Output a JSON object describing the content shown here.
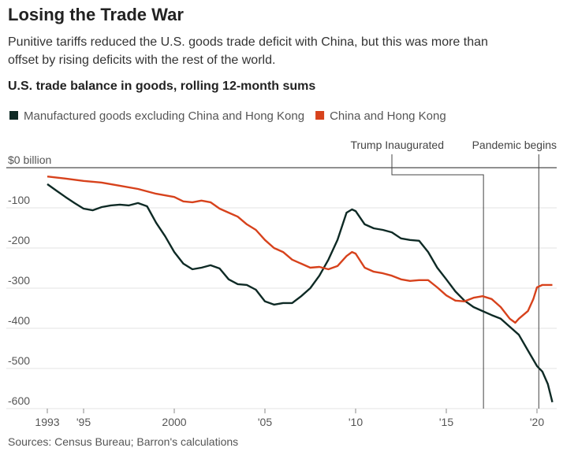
{
  "chart_data": {
    "type": "line",
    "title": "Losing the Trade War",
    "subtitle": [
      "Punitive tariffs reduced the U.S. goods trade deficit with China, but this was more than",
      "offset by rising deficits with the rest of the world."
    ],
    "heading": "U.S. trade balance in goods, rolling 12-month sums",
    "source": "Sources: Census Bureau; Barron's calculations",
    "xlim": [
      1993,
      2021
    ],
    "ylim": [
      -600,
      0
    ],
    "xticks": [
      1993,
      {
        "value": 1995,
        "label": "'95"
      },
      2000,
      {
        "value": 2005,
        "label": "'05"
      },
      {
        "value": 2010,
        "label": "'10"
      },
      {
        "value": 2015,
        "label": "'15"
      },
      {
        "value": 2020,
        "label": "'20"
      }
    ],
    "yticks": [
      {
        "value": 0,
        "label": "$0 billion"
      },
      -100,
      -200,
      -300,
      -400,
      -500,
      -600
    ],
    "grid": true,
    "annotations": [
      {
        "text": "Trump Inaugurated",
        "x": 2017.05
      },
      {
        "text": "Pandemic begins",
        "x": 2020.1
      }
    ],
    "series": [
      {
        "name": "Manufactured goods excluding China and Hong Kong",
        "color": "#0e2a25",
        "x": [
          1993,
          1993.5,
          1994,
          1994.5,
          1995,
          1995.5,
          1996,
          1996.5,
          1997,
          1997.5,
          1998,
          1998.5,
          1999,
          1999.5,
          2000,
          2000.5,
          2001,
          2001.5,
          2002,
          2002.5,
          2003,
          2003.5,
          2004,
          2004.5,
          2005,
          2005.5,
          2006,
          2006.5,
          2007,
          2007.5,
          2008,
          2008.5,
          2009,
          2009.5,
          2009.8,
          2010,
          2010.5,
          2011,
          2011.5,
          2012,
          2012.5,
          2013,
          2013.5,
          2014,
          2014.5,
          2015,
          2015.5,
          2016,
          2016.5,
          2017,
          2017.5,
          2018,
          2018.5,
          2019,
          2019.5,
          2020,
          2020.3,
          2020.6,
          2020.85
        ],
        "values": [
          -41,
          -57,
          -73,
          -88,
          -102,
          -106,
          -98,
          -94,
          -92,
          -94,
          -88,
          -96,
          -137,
          -171,
          -210,
          -239,
          -253,
          -249,
          -243,
          -251,
          -278,
          -290,
          -292,
          -304,
          -333,
          -341,
          -337,
          -337,
          -320,
          -300,
          -269,
          -229,
          -180,
          -112,
          -104,
          -108,
          -141,
          -151,
          -155,
          -161,
          -176,
          -180,
          -182,
          -210,
          -249,
          -278,
          -308,
          -331,
          -347,
          -357,
          -367,
          -376,
          -396,
          -416,
          -455,
          -494,
          -508,
          -539,
          -584
        ]
      },
      {
        "name": "China and Hong Kong",
        "color": "#d7421c",
        "x": [
          1993,
          1994,
          1995,
          1996,
          1997,
          1998,
          1999,
          2000,
          2000.5,
          2001,
          2001.5,
          2002,
          2002.5,
          2003,
          2003.5,
          2004,
          2004.5,
          2005,
          2005.5,
          2006,
          2006.5,
          2007,
          2007.5,
          2008,
          2008.5,
          2009,
          2009.5,
          2009.8,
          2010,
          2010.5,
          2011,
          2011.5,
          2012,
          2012.5,
          2013,
          2013.5,
          2014,
          2014.5,
          2015,
          2015.5,
          2016,
          2016.5,
          2017,
          2017.5,
          2018,
          2018.5,
          2018.8,
          2019,
          2019.5,
          2019.8,
          2020,
          2020.3,
          2020.85
        ],
        "values": [
          -22,
          -27,
          -33,
          -37,
          -45,
          -53,
          -65,
          -73,
          -84,
          -86,
          -82,
          -86,
          -102,
          -112,
          -122,
          -141,
          -155,
          -180,
          -200,
          -210,
          -229,
          -239,
          -249,
          -247,
          -253,
          -245,
          -220,
          -210,
          -214,
          -249,
          -259,
          -263,
          -269,
          -278,
          -282,
          -280,
          -280,
          -298,
          -318,
          -331,
          -333,
          -324,
          -320,
          -327,
          -347,
          -376,
          -386,
          -376,
          -357,
          -327,
          -298,
          -292,
          -292
        ]
      }
    ]
  }
}
